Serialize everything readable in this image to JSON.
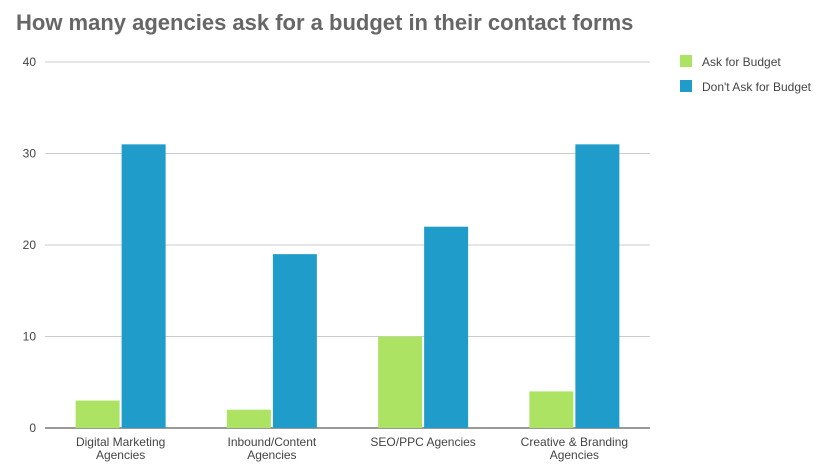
{
  "chart_data": {
    "type": "bar",
    "title": "How many agencies ask for a budget in their contact forms",
    "categories": [
      [
        "Digital Marketing",
        "Agencies"
      ],
      [
        "Inbound/Content",
        "Agencies"
      ],
      [
        "SEO/PPC Agencies"
      ],
      [
        "Creative & Branding",
        "Agencies"
      ]
    ],
    "series": [
      {
        "name": "Ask for Budget",
        "color": "#ade363",
        "values": [
          3,
          2,
          10,
          4
        ]
      },
      {
        "name": "Don't Ask for Budget",
        "color": "#209ccb",
        "values": [
          31,
          19,
          22,
          31
        ]
      }
    ],
    "ylim": [
      0,
      40
    ],
    "yticks": [
      0,
      10,
      20,
      30,
      40
    ],
    "grid": true,
    "legend_position": "right"
  }
}
